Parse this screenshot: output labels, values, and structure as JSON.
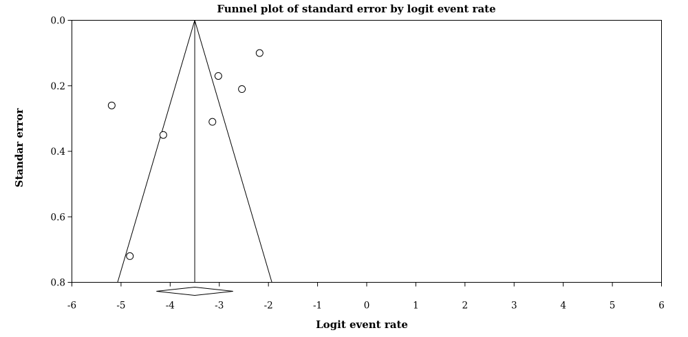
{
  "chart_data": {
    "type": "scatter",
    "title": "Funnel plot of standard error by logit event rate",
    "xlabel": "Logit event rate",
    "ylabel": "Standar error",
    "xlim": [
      -6,
      6
    ],
    "ylim": [
      0.8,
      0.0
    ],
    "y_axis_inverted": true,
    "x_ticks": [
      -6,
      -5,
      -4,
      -3,
      -2,
      -1,
      0,
      1,
      2,
      3,
      4,
      5,
      6
    ],
    "x_tick_labels": [
      "-6",
      "-5",
      "-4",
      "-3",
      "-2",
      "-1",
      "0",
      "1",
      "2",
      "3",
      "4",
      "5",
      "6"
    ],
    "y_ticks": [
      0.0,
      0.2,
      0.4,
      0.6,
      0.8
    ],
    "y_tick_labels": [
      "0.0",
      "0.2",
      "0.4",
      "0.6",
      "0.8"
    ],
    "grid": false,
    "points": [
      {
        "x": -5.19,
        "y": 0.26
      },
      {
        "x": -4.82,
        "y": 0.72
      },
      {
        "x": -4.14,
        "y": 0.35
      },
      {
        "x": -3.14,
        "y": 0.31
      },
      {
        "x": -3.02,
        "y": 0.17
      },
      {
        "x": -2.54,
        "y": 0.21
      },
      {
        "x": -2.18,
        "y": 0.1
      }
    ],
    "pooled_estimate": -3.5,
    "funnel": {
      "apex": [
        -3.5,
        0.0
      ],
      "base_left": [
        -5.07,
        0.8
      ],
      "base_right": [
        -1.93,
        0.8
      ]
    },
    "summary_diamond": {
      "center": -3.5,
      "lower": -4.28,
      "upper": -2.72
    },
    "colors": {
      "line": "#000000",
      "marker_fill": "#ffffff",
      "marker_stroke": "#000000"
    }
  }
}
